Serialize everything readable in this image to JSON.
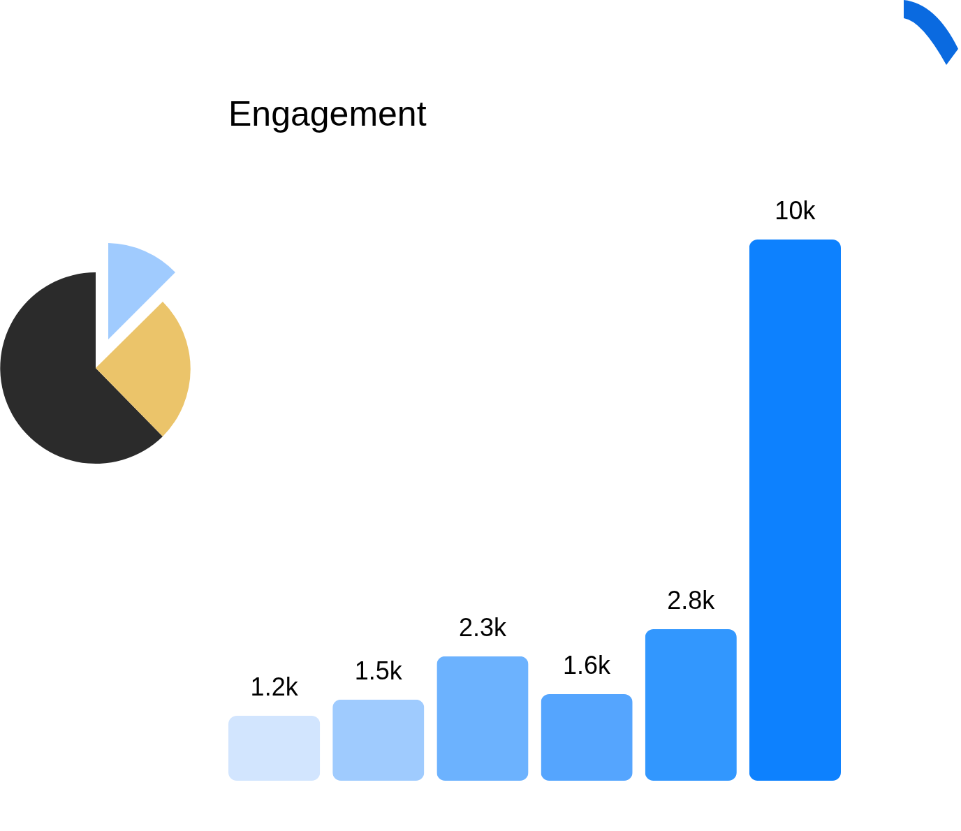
{
  "chart_data": {
    "type": "bar",
    "title": "Engagement",
    "categories": [
      null,
      null,
      null,
      null,
      null,
      null
    ],
    "values": [
      1200,
      1500,
      2300,
      1600,
      2800,
      10000
    ],
    "value_labels": [
      "1.2k",
      "1.5k",
      "2.3k",
      "1.6k",
      "2.8k",
      "10k"
    ],
    "colors": [
      "#d2e5fe",
      "#9fcbfe",
      "#6cb2fe",
      "#55a5fe",
      "#3297fe",
      "#0d81fe"
    ],
    "legend": false
  }
}
